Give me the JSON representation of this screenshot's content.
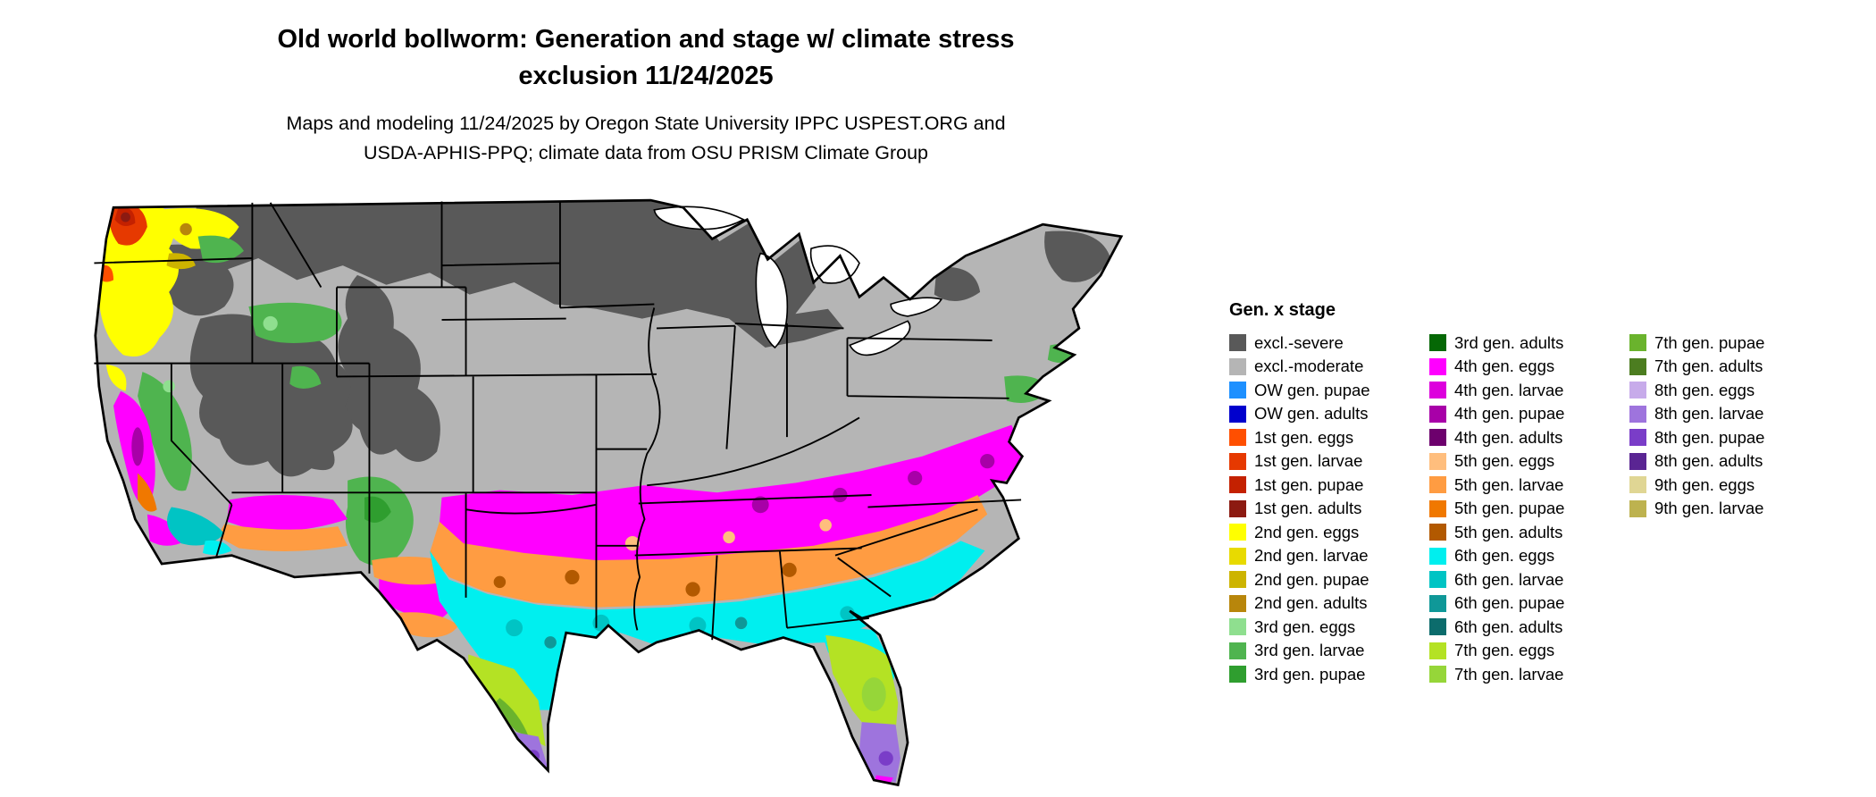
{
  "title": {
    "line1": "Old world bollworm: Generation and stage w/ climate stress",
    "line2": "exclusion 11/24/2025"
  },
  "subtitle": {
    "line1": "Maps and modeling 11/24/2025 by Oregon State University IPPC USPEST.ORG and",
    "line2": "USDA-APHIS-PPQ; climate data from OSU PRISM Climate Group"
  },
  "colors": {
    "excl_severe": "#595959",
    "excl_moderate": "#b5b5b5",
    "ow_pupae": "#1e90ff",
    "ow_adults": "#0000cd",
    "g1_eggs": "#ff4f00",
    "g1_larvae": "#e63900",
    "g1_pupae": "#c42100",
    "g1_adults": "#8c1a11",
    "g2_eggs": "#ffff00",
    "g2_larvae": "#e8da00",
    "g2_pupae": "#cdb400",
    "g2_adults": "#b8860b",
    "g3_eggs": "#8fdf8f",
    "g3_larvae": "#4fb44f",
    "g3_pupae": "#2f9e2f",
    "g3_adults": "#056805",
    "g4_eggs": "#ff00ff",
    "g4_larvae": "#dd00dd",
    "g4_pupae": "#a800a8",
    "g4_adults": "#6d006d",
    "g5_eggs": "#ffbe7d",
    "g5_larvae": "#ff9c42",
    "g5_pupae": "#f07800",
    "g5_adults": "#b25900",
    "g6_eggs": "#00efef",
    "g6_larvae": "#00c4c4",
    "g6_pupae": "#0f9898",
    "g6_adults": "#0c6c6c",
    "g7_eggs": "#b4e224",
    "g7_larvae": "#96d639",
    "g7_pupae": "#6ab32d",
    "g7_adults": "#4c7d20",
    "g8_eggs": "#c7abea",
    "g8_larvae": "#9e74dd",
    "g8_pupae": "#7a3dc8",
    "g8_adults": "#5a2593",
    "g9_eggs": "#e0d694",
    "g9_larvae": "#bdb24f"
  },
  "legend": {
    "title": "Gen. x stage",
    "columns": [
      [
        {
          "label": "excl.-severe",
          "color": "excl_severe"
        },
        {
          "label": "excl.-moderate",
          "color": "excl_moderate"
        },
        {
          "label": "OW gen. pupae",
          "color": "ow_pupae"
        },
        {
          "label": "OW gen. adults",
          "color": "ow_adults"
        },
        {
          "label": "1st gen. eggs",
          "color": "g1_eggs"
        },
        {
          "label": "1st gen. larvae",
          "color": "g1_larvae"
        },
        {
          "label": "1st gen. pupae",
          "color": "g1_pupae"
        },
        {
          "label": "1st gen. adults",
          "color": "g1_adults"
        },
        {
          "label": "2nd gen. eggs",
          "color": "g2_eggs"
        },
        {
          "label": "2nd gen. larvae",
          "color": "g2_larvae"
        },
        {
          "label": "2nd gen. pupae",
          "color": "g2_pupae"
        },
        {
          "label": "2nd gen. adults",
          "color": "g2_adults"
        },
        {
          "label": "3rd gen. eggs",
          "color": "g3_eggs"
        },
        {
          "label": "3rd gen. larvae",
          "color": "g3_larvae"
        },
        {
          "label": "3rd gen. pupae",
          "color": "g3_pupae"
        }
      ],
      [
        {
          "label": "3rd gen. adults",
          "color": "g3_adults"
        },
        {
          "label": "4th gen. eggs",
          "color": "g4_eggs"
        },
        {
          "label": "4th gen. larvae",
          "color": "g4_larvae"
        },
        {
          "label": "4th gen. pupae",
          "color": "g4_pupae"
        },
        {
          "label": "4th gen. adults",
          "color": "g4_adults"
        },
        {
          "label": "5th gen. eggs",
          "color": "g5_eggs"
        },
        {
          "label": "5th gen. larvae",
          "color": "g5_larvae"
        },
        {
          "label": "5th gen. pupae",
          "color": "g5_pupae"
        },
        {
          "label": "5th gen. adults",
          "color": "g5_adults"
        },
        {
          "label": "6th gen. eggs",
          "color": "g6_eggs"
        },
        {
          "label": "6th gen. larvae",
          "color": "g6_larvae"
        },
        {
          "label": "6th gen. pupae",
          "color": "g6_pupae"
        },
        {
          "label": "6th gen. adults",
          "color": "g6_adults"
        },
        {
          "label": "7th gen. eggs",
          "color": "g7_eggs"
        },
        {
          "label": "7th gen. larvae",
          "color": "g7_larvae"
        }
      ],
      [
        {
          "label": "7th gen. pupae",
          "color": "g7_pupae"
        },
        {
          "label": "7th gen. adults",
          "color": "g7_adults"
        },
        {
          "label": "8th gen. eggs",
          "color": "g8_eggs"
        },
        {
          "label": "8th gen. larvae",
          "color": "g8_larvae"
        },
        {
          "label": "8th gen. pupae",
          "color": "g8_pupae"
        },
        {
          "label": "8th gen. adults",
          "color": "g8_adults"
        },
        {
          "label": "9th gen. eggs",
          "color": "g9_eggs"
        },
        {
          "label": "9th gen. larvae",
          "color": "g9_larvae"
        }
      ]
    ]
  },
  "map": {
    "description": "Continental US map colored by old world bollworm generation and stage with climate stress exclusion"
  }
}
